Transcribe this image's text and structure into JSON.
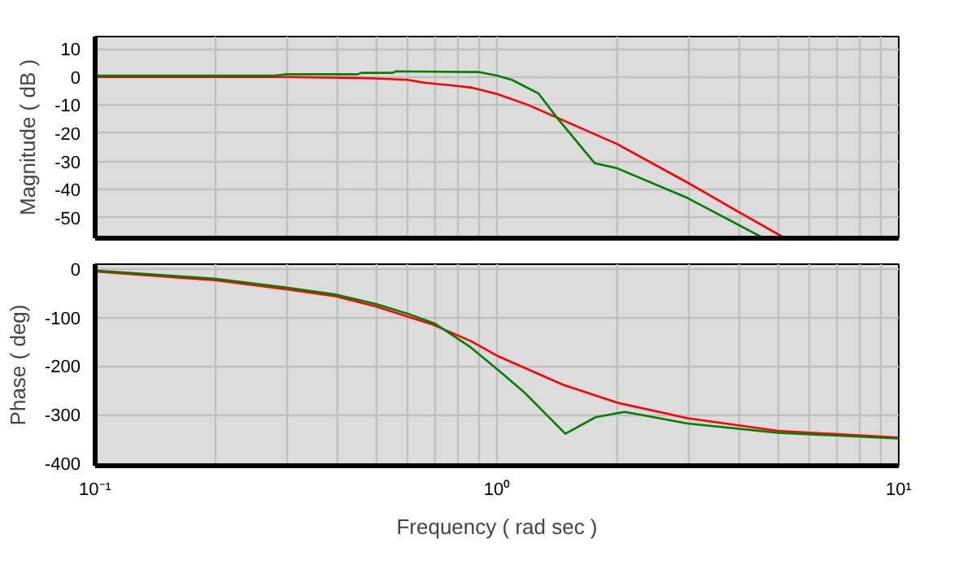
{
  "chart_data": [
    {
      "type": "line",
      "ylabel": "Magnitude ( dB )",
      "log": "x",
      "grid": true,
      "tick_labels": "y",
      "line_style": "solid",
      "xlim": [
        0.1,
        10
      ],
      "ylim": [
        -57.3,
        14.4
      ],
      "xticks": [
        {
          "value": 0.1,
          "label": null
        },
        {
          "value": 0.2,
          "label": null
        },
        {
          "value": 0.3,
          "label": null
        },
        {
          "value": 0.4,
          "label": null
        },
        {
          "value": 0.5,
          "label": null
        },
        {
          "value": 0.6,
          "label": null
        },
        {
          "value": 0.7,
          "label": null
        },
        {
          "value": 0.8,
          "label": null
        },
        {
          "value": 0.9,
          "label": null
        },
        {
          "value": 1,
          "label": null
        },
        {
          "value": 2,
          "label": null
        },
        {
          "value": 3,
          "label": null
        },
        {
          "value": 4,
          "label": null
        },
        {
          "value": 5,
          "label": null
        },
        {
          "value": 6,
          "label": null
        },
        {
          "value": 7,
          "label": null
        },
        {
          "value": 8,
          "label": null
        },
        {
          "value": 9,
          "label": null
        },
        {
          "value": 10,
          "label": null
        }
      ],
      "yticks": [
        10,
        0,
        -10,
        -20,
        -30,
        -40,
        -50
      ],
      "series": [
        {
          "color": "#ff0000",
          "x": [
            0.1,
            0.3,
            0.45,
            0.5,
            0.6,
            0.66,
            0.78,
            0.86,
            1.0,
            1.2,
            1.41,
            1.99,
            2.98,
            4.0,
            5.21
          ],
          "values": [
            0,
            0,
            -0.3,
            -0.5,
            -1,
            -2,
            -3,
            -3.7,
            -6,
            -10,
            -14.4,
            -23.8,
            -37.5,
            -48,
            -57.3
          ]
        },
        {
          "color": "#008000",
          "x": [
            0.1,
            0.28,
            0.3,
            0.45,
            0.46,
            0.55,
            0.56,
            0.9,
            1.0,
            1.09,
            1.27,
            1.41,
            1.75,
            1.99,
            2.98,
            4.61
          ],
          "values": [
            0.5,
            0.5,
            1,
            1,
            1.5,
            1.5,
            2,
            1.8,
            0.5,
            -1,
            -5.9,
            -14.4,
            -30.6,
            -32.4,
            -43,
            -57.3
          ]
        }
      ]
    },
    {
      "type": "line",
      "xlabel": "Frequency ( rad sec )",
      "ylabel": "Phase ( deg)",
      "log": "x",
      "grid": true,
      "line_style": "solid",
      "xlim": [
        0.1,
        10
      ],
      "ylim": [
        -405,
        10
      ],
      "xticks": [
        {
          "value": 0.1,
          "label": "10⁻¹"
        },
        {
          "value": 0.2,
          "label": null
        },
        {
          "value": 0.3,
          "label": null
        },
        {
          "value": 0.4,
          "label": null
        },
        {
          "value": 0.5,
          "label": null
        },
        {
          "value": 0.6,
          "label": null
        },
        {
          "value": 0.7,
          "label": null
        },
        {
          "value": 0.8,
          "label": null
        },
        {
          "value": 0.9,
          "label": null
        },
        {
          "value": 1,
          "label": "10⁰"
        },
        {
          "value": 2,
          "label": null
        },
        {
          "value": 3,
          "label": null
        },
        {
          "value": 4,
          "label": null
        },
        {
          "value": 5,
          "label": null
        },
        {
          "value": 6,
          "label": null
        },
        {
          "value": 7,
          "label": null
        },
        {
          "value": 8,
          "label": null
        },
        {
          "value": 9,
          "label": null
        },
        {
          "value": 10,
          "label": "10¹"
        }
      ],
      "yticks": [
        0,
        -100,
        -200,
        -300,
        -400
      ],
      "series": [
        {
          "color": "#ff0000",
          "x": [
            0.1,
            0.199,
            0.3,
            0.397,
            0.5,
            0.6,
            0.69,
            0.86,
            1.01,
            1.46,
            1.99,
            2.98,
            5.0,
            10
          ],
          "values": [
            -5,
            -23,
            -42,
            -56,
            -77,
            -98,
            -114,
            -148,
            -180,
            -238,
            -275,
            -307,
            -333,
            -347
          ]
        },
        {
          "color": "#008000",
          "x": [
            0.1,
            0.2,
            0.3,
            0.4,
            0.5,
            0.6,
            0.7,
            0.86,
            1.01,
            1.17,
            1.48,
            1.76,
            2.08,
            2.98,
            5.0,
            10
          ],
          "values": [
            -3,
            -20,
            -38,
            -53,
            -72,
            -92,
            -112,
            -161,
            -209,
            -254,
            -339,
            -305,
            -294,
            -318,
            -337,
            -349
          ]
        }
      ]
    }
  ]
}
